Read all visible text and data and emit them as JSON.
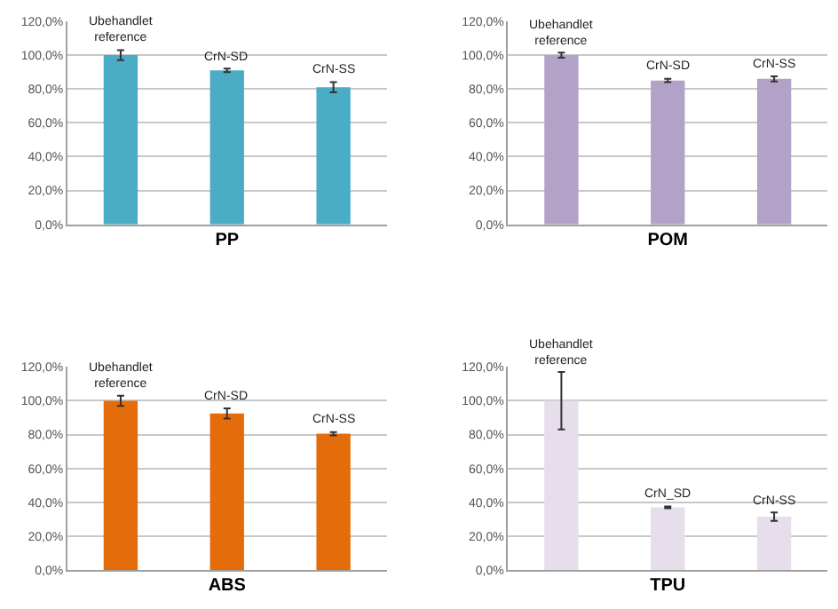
{
  "chart_data": [
    {
      "type": "bar",
      "xlabel": "PP",
      "categories": [
        "Ubehandlet\nreference",
        "CrN-SD",
        "CrN-SS"
      ],
      "values": [
        100,
        91,
        81
      ],
      "errors": [
        3,
        1,
        3
      ],
      "color": "#4bacc6",
      "ylim": [
        0,
        120
      ],
      "yticks": [
        {
          "value": 0,
          "label": "0,0%"
        },
        {
          "value": 20,
          "label": "20,0%"
        },
        {
          "value": 40,
          "label": "40,0%"
        },
        {
          "value": 60,
          "label": "60,0%"
        },
        {
          "value": 80,
          "label": "80,0%"
        },
        {
          "value": 100,
          "label": "100,0%"
        },
        {
          "value": 120,
          "label": "120,0%"
        }
      ],
      "grid": "y",
      "tick_labels": "y"
    },
    {
      "type": "bar",
      "xlabel": "POM",
      "categories": [
        "Ubehandlet\nreference",
        "CrN-SD",
        "CrN-SS"
      ],
      "values": [
        100,
        85,
        86
      ],
      "errors": [
        1.5,
        1,
        1.5
      ],
      "color": "#b3a2c7",
      "ylim": [
        0,
        120
      ],
      "yticks": [
        {
          "value": 0,
          "label": "0,0%"
        },
        {
          "value": 20,
          "label": "20,0%"
        },
        {
          "value": 40,
          "label": "40,0%"
        },
        {
          "value": 60,
          "label": "60,0%"
        },
        {
          "value": 80,
          "label": "80,0%"
        },
        {
          "value": 100,
          "label": "100,0%"
        },
        {
          "value": 120,
          "label": "120,0%"
        }
      ],
      "grid": "y",
      "tick_labels": "y"
    },
    {
      "type": "bar",
      "xlabel": "ABS",
      "categories": [
        "Ubehandlet\nreference",
        "CrN-SD",
        "CrN-SS"
      ],
      "values": [
        100,
        92.5,
        80.5
      ],
      "errors": [
        3,
        3,
        1
      ],
      "color": "#e46c0a",
      "ylim": [
        0,
        120
      ],
      "yticks": [
        {
          "value": 0,
          "label": "0,0%"
        },
        {
          "value": 20,
          "label": "20,0%"
        },
        {
          "value": 40,
          "label": "40,0%"
        },
        {
          "value": 60,
          "label": "60,0%"
        },
        {
          "value": 80,
          "label": "80,0%"
        },
        {
          "value": 100,
          "label": "100,0%"
        },
        {
          "value": 120,
          "label": "120,0%"
        }
      ],
      "grid": "y",
      "tick_labels": "y"
    },
    {
      "type": "bar",
      "xlabel": "TPU",
      "categories": [
        "Ubehandlet\nreference",
        "CrN_SD",
        "CrN-SS"
      ],
      "values": [
        100,
        37,
        31.5
      ],
      "errors": [
        17,
        0.5,
        2.5
      ],
      "color": "#e6dfeb",
      "ylim": [
        0,
        120
      ],
      "yticks": [
        {
          "value": 0,
          "label": "0,0%"
        },
        {
          "value": 20,
          "label": "20,0%"
        },
        {
          "value": 40,
          "label": "40,0%"
        },
        {
          "value": 60,
          "label": "60,0%"
        },
        {
          "value": 80,
          "label": "80,0%"
        },
        {
          "value": 100,
          "label": "100,0%"
        },
        {
          "value": 120,
          "label": "120,0%"
        }
      ],
      "grid": "y",
      "tick_labels": "y"
    }
  ]
}
